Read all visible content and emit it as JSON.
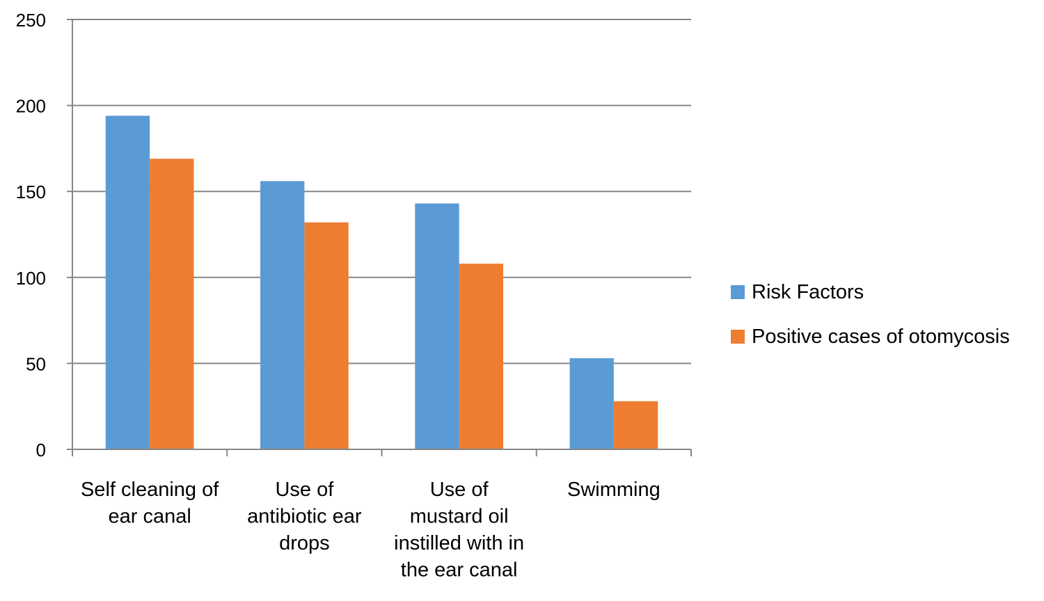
{
  "chart_data": {
    "type": "bar",
    "title": "",
    "xlabel": "",
    "ylabel": "",
    "ylim": [
      0,
      250
    ],
    "yticks": [
      0,
      50,
      100,
      150,
      200,
      250
    ],
    "grid": true,
    "legend_position": "right",
    "categories": [
      [
        "Self cleaning of",
        "ear canal"
      ],
      [
        "Use of",
        "antibiotic ear",
        "drops"
      ],
      [
        "Use of",
        "mustard oil",
        "instilled with in",
        "the ear canal"
      ],
      [
        "Swimming"
      ]
    ],
    "series": [
      {
        "name": "Risk Factors",
        "color": "#5b9bd5",
        "values": [
          194,
          156,
          143,
          53
        ]
      },
      {
        "name": "Positive cases of otomycosis",
        "color": "#ed7d31",
        "values": [
          169,
          132,
          108,
          28
        ]
      }
    ]
  }
}
